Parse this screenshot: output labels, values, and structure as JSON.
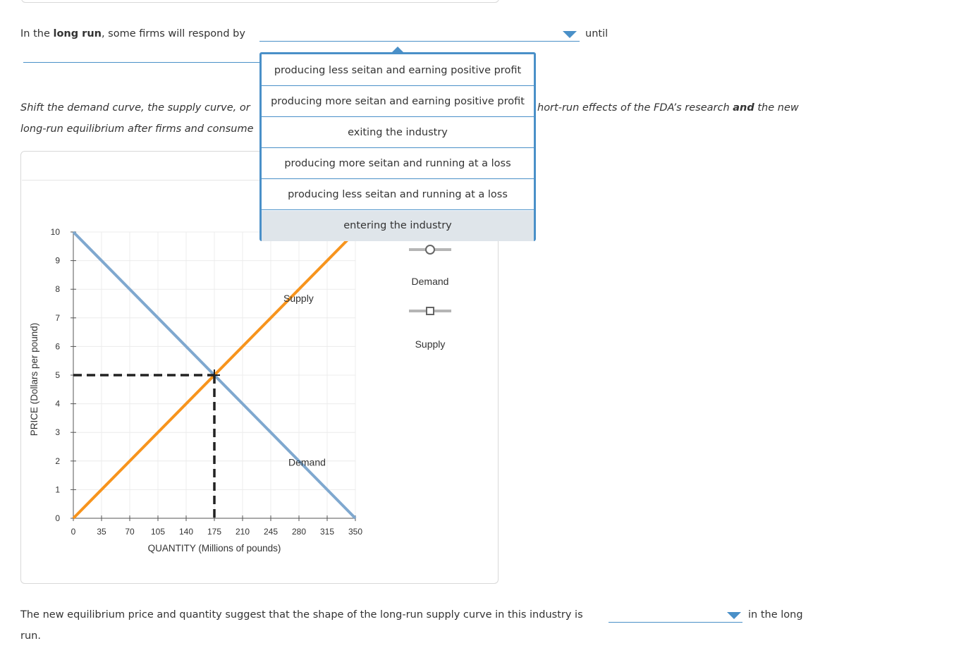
{
  "q1": {
    "prefix": "In the ",
    "bold": "long run",
    "suffix": ", some firms will respond by",
    "after": "until"
  },
  "dropdown_options": [
    "producing less seitan and earning positive profit",
    "producing more seitan and earning positive profit",
    "exiting the industry",
    "producing more seitan and running at a loss",
    "producing less seitan and running at a loss",
    "entering the industry"
  ],
  "instruction": {
    "left1": "Shift the demand curve, the supply curve, or",
    "right1a": "hort-run effects of the FDA’s research ",
    "right1b": "and",
    "right1c": " the new",
    "left2": "long-run equilibrium after firms and consume"
  },
  "legend": {
    "demand": "Demand",
    "supply": "Supply"
  },
  "chart_data": {
    "type": "line",
    "xlabel": "QUANTITY (Millions of pounds)",
    "ylabel": "PRICE (Dollars per pound)",
    "xlim": [
      0,
      350
    ],
    "ylim": [
      0,
      10
    ],
    "xticks": [
      0,
      35,
      70,
      105,
      140,
      175,
      210,
      245,
      280,
      315,
      350
    ],
    "yticks": [
      0,
      1,
      2,
      3,
      4,
      5,
      6,
      7,
      8,
      9,
      10
    ],
    "grid": true,
    "series": [
      {
        "name": "Supply",
        "color": "#f7941d",
        "x": [
          0,
          350
        ],
        "y": [
          0,
          10
        ]
      },
      {
        "name": "Demand",
        "color": "#7fa8cf",
        "x": [
          0,
          350
        ],
        "y": [
          10,
          0
        ]
      }
    ],
    "equilibrium": {
      "x": 175,
      "y": 5
    }
  },
  "q2": {
    "text": "The new equilibrium price and quantity suggest that the shape of the long-run supply curve in this industry is",
    "after": "in the long",
    "wrap": "run."
  }
}
